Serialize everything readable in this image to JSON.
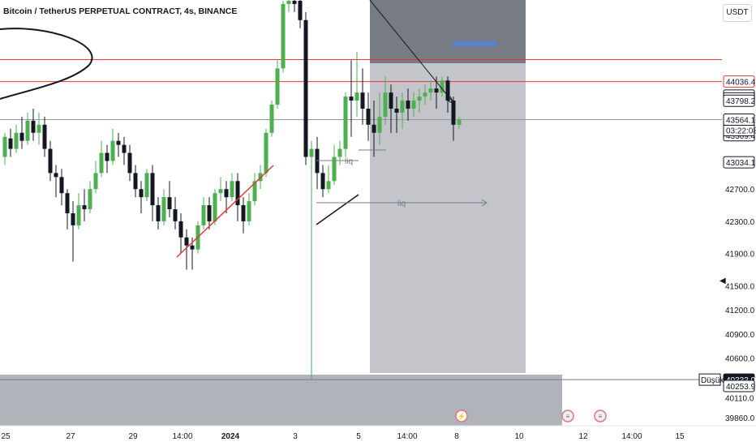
{
  "header": {
    "symbol_title": "Bitcoin / TetherUS PERPETUAL CONTRACT, 4s, BINANCE",
    "currency": "USDT"
  },
  "chart_data": {
    "type": "candlestick",
    "title": "Bitcoin / TetherUS PERPETUAL CONTRACT, 4s, BINANCE",
    "ylim": [
      39760,
      45050
    ],
    "y_ticks": [
      39860.0,
      40110.0,
      40600.0,
      40900.0,
      41200.0,
      41500.0,
      41900.0,
      42300.0,
      42700.0,
      43034.1,
      43369.4,
      43798.2,
      43826.9,
      43862.6
    ],
    "x_ticks": [
      "25",
      "27",
      "29",
      "14:00",
      "2024",
      "3",
      "5",
      "14:00",
      "8",
      "10",
      "12",
      "14:00",
      "15"
    ],
    "price_labels": [
      {
        "value": 44036.4,
        "text": "44036.4",
        "style": "red"
      },
      {
        "value": 43862.6,
        "text": "43862.6",
        "style": "plain"
      },
      {
        "value": 43826.9,
        "text": "43826.9",
        "style": "plain"
      },
      {
        "value": 43798.2,
        "text": "43798.2",
        "style": "plain"
      },
      {
        "value": 43564.1,
        "text": "43564.1",
        "style": "last"
      },
      {
        "value": 43369.4,
        "text": "43369.4",
        "style": "plain"
      },
      {
        "value": 43034.1,
        "text": "43034.1",
        "style": "plain"
      },
      {
        "value": 40333.0,
        "text": "40333.0",
        "style": "low"
      },
      {
        "value": 40253.9,
        "text": "40253.9",
        "style": "plain"
      }
    ],
    "countdown": "03:22:08",
    "low_label": "Düşük",
    "annotations": [
      "liq",
      "liq"
    ],
    "horizontal_levels": [
      44310,
      44036.4
    ],
    "candles": [
      [
        43100,
        43350,
        43000,
        43400
      ],
      [
        43330,
        43200,
        43100,
        43450
      ],
      [
        43200,
        43400,
        43150,
        43500
      ],
      [
        43400,
        43300,
        43200,
        43600
      ],
      [
        43300,
        43550,
        43250,
        43650
      ],
      [
        43550,
        43400,
        43300,
        43700
      ],
      [
        43400,
        43500,
        43250,
        43650
      ],
      [
        43500,
        43200,
        43100,
        43600
      ],
      [
        43200,
        42900,
        42800,
        43300
      ],
      [
        42900,
        42850,
        42600,
        43000
      ],
      [
        42850,
        42650,
        42500,
        42950
      ],
      [
        42650,
        42400,
        42200,
        42700
      ],
      [
        42400,
        42250,
        41800,
        42550
      ],
      [
        42250,
        42500,
        42200,
        42650
      ],
      [
        42500,
        42450,
        42300,
        42700
      ],
      [
        42450,
        42700,
        42400,
        42800
      ],
      [
        42700,
        42900,
        42650,
        43050
      ],
      [
        42900,
        43150,
        42850,
        43300
      ],
      [
        43150,
        43050,
        42900,
        43250
      ],
      [
        43050,
        43300,
        43000,
        43450
      ],
      [
        43300,
        43250,
        43100,
        43400
      ],
      [
        43250,
        43150,
        43000,
        43350
      ],
      [
        43150,
        42900,
        42800,
        43250
      ],
      [
        42900,
        42700,
        42600,
        43000
      ],
      [
        42700,
        42600,
        42400,
        42800
      ],
      [
        42600,
        42900,
        42550,
        42950
      ],
      [
        42900,
        42500,
        42300,
        43000
      ],
      [
        42500,
        42300,
        42200,
        42600
      ],
      [
        42300,
        42600,
        42250,
        42700
      ],
      [
        42600,
        42450,
        42350,
        42800
      ],
      [
        42450,
        42300,
        42200,
        42600
      ],
      [
        42300,
        42100,
        41900,
        42400
      ],
      [
        42100,
        42000,
        41700,
        42200
      ],
      [
        42000,
        41950,
        41700,
        42100
      ],
      [
        41950,
        42250,
        41900,
        42300
      ],
      [
        42250,
        42500,
        42200,
        42600
      ],
      [
        42500,
        42300,
        42200,
        42600
      ],
      [
        42300,
        42650,
        42250,
        42700
      ],
      [
        42650,
        42700,
        42550,
        42850
      ],
      [
        42700,
        42600,
        42400,
        42800
      ],
      [
        42600,
        42800,
        42550,
        42900
      ],
      [
        42800,
        42500,
        42300,
        42900
      ],
      [
        42500,
        42300,
        42150,
        42600
      ],
      [
        42300,
        42550,
        42250,
        42650
      ],
      [
        42550,
        42800,
        42500,
        42900
      ],
      [
        42800,
        42900,
        42700,
        43000
      ],
      [
        42900,
        43400,
        42850,
        43450
      ],
      [
        43400,
        43750,
        43350,
        43800
      ],
      [
        43750,
        44200,
        43700,
        44300
      ],
      [
        44200,
        45000,
        44150,
        45040
      ],
      [
        45000,
        45040,
        44900,
        45050
      ],
      [
        45040,
        45000,
        44900,
        45050
      ],
      [
        45040,
        44800,
        44700,
        45050
      ],
      [
        44800,
        43100,
        43000,
        44900
      ],
      [
        43100,
        43200,
        40333,
        43300
      ],
      [
        43200,
        42900,
        42700,
        43350
      ],
      [
        42900,
        42700,
        42600,
        43000
      ],
      [
        42700,
        42800,
        42650,
        43000
      ],
      [
        42800,
        43100,
        42750,
        43250
      ],
      [
        43100,
        43200,
        43000,
        43300
      ],
      [
        43200,
        43850,
        43100,
        43900
      ],
      [
        43850,
        43800,
        43350,
        44300
      ],
      [
        43800,
        43900,
        43600,
        44400
      ],
      [
        43900,
        43700,
        43500,
        44200
      ],
      [
        43700,
        43500,
        43300,
        43900
      ],
      [
        43500,
        43400,
        43100,
        43800
      ],
      [
        43400,
        43600,
        43250,
        43900
      ],
      [
        43600,
        43900,
        43500,
        44100
      ],
      [
        43900,
        43700,
        43400,
        44000
      ],
      [
        43700,
        43650,
        43400,
        43850
      ],
      [
        43650,
        43800,
        43450,
        43900
      ],
      [
        43800,
        43700,
        43550,
        43950
      ],
      [
        43700,
        43800,
        43600,
        43900
      ],
      [
        43800,
        43850,
        43650,
        43950
      ],
      [
        43850,
        43900,
        43750,
        44000
      ],
      [
        43900,
        43950,
        43800,
        44050
      ],
      [
        43950,
        43900,
        43700,
        44100
      ],
      [
        43900,
        44050,
        43850,
        44100
      ],
      [
        44050,
        43800,
        43650,
        44100
      ],
      [
        43800,
        43500,
        43300,
        43850
      ],
      [
        43500,
        43564.1,
        43450,
        43600
      ]
    ]
  }
}
